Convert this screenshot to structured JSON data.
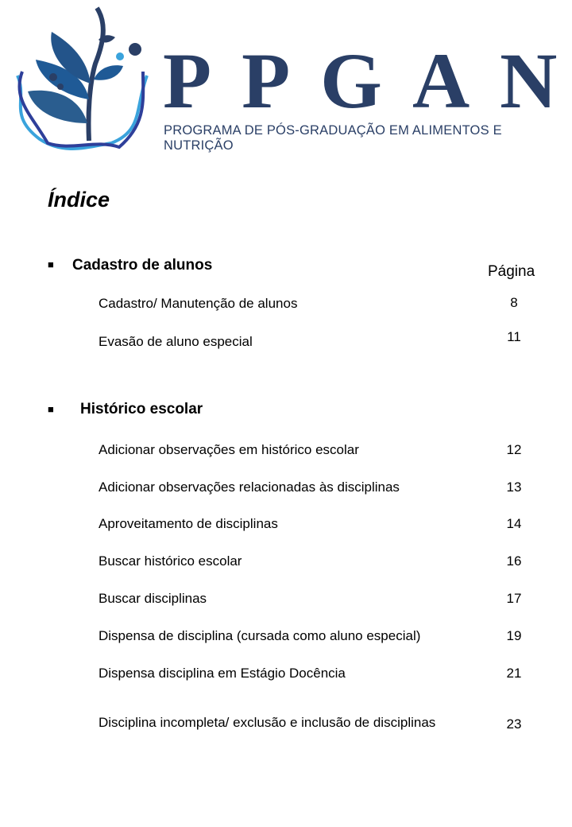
{
  "logo": {
    "name": "PPGAN",
    "subtitle": "PROGRAMA DE PÓS-GRADUAÇÃO EM ALIMENTOS E NUTRIÇÃO",
    "colors": {
      "navy": "#2a3f66",
      "blue": "#1f5a96",
      "light_blue": "#3aa3dc"
    }
  },
  "title": "Índice",
  "page_column_label": "Página",
  "sections": [
    {
      "heading": "Cadastro de alunos",
      "items": [
        {
          "label": "Cadastro/ Manutenção de alunos",
          "page": "8"
        },
        {
          "label": "Evasão de aluno especial",
          "page": "11"
        }
      ]
    },
    {
      "heading": "Histórico escolar",
      "items": [
        {
          "label": "Adicionar observações  em histórico escolar",
          "page": "12"
        },
        {
          "label": "Adicionar observações  relacionadas às disciplinas",
          "page": "13"
        },
        {
          "label": "Aproveitamento  de disciplinas",
          "page": "14"
        },
        {
          "label": "Buscar histórico escolar",
          "page": "16"
        },
        {
          "label": "Buscar disciplinas",
          "page": "17"
        },
        {
          "label": "Dispensa de disciplina (cursada como aluno especial)",
          "page": "19"
        },
        {
          "label": "Dispensa disciplina em Estágio Docência",
          "page": "21"
        },
        {
          "label": "Disciplina incompleta/ exclusão e inclusão de disciplinas",
          "page": "23"
        }
      ]
    }
  ]
}
